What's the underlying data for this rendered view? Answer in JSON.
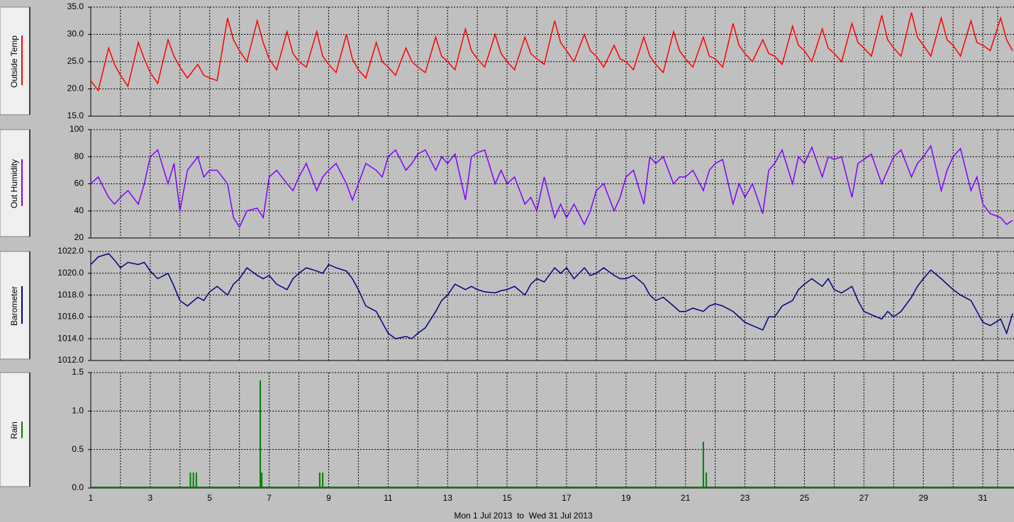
{
  "chart_data": [
    {
      "type": "line",
      "ylabel": "Outside Temp",
      "color": "#ff0000",
      "xlim": [
        1,
        32
      ],
      "xticks": [
        1,
        3,
        5,
        7,
        9,
        11,
        13,
        15,
        17,
        19,
        21,
        23,
        25,
        27,
        29,
        31
      ],
      "minor_grid": true,
      "ylim": [
        15,
        35
      ],
      "yticks": [
        {
          "value": 35,
          "label": "35.0"
        },
        {
          "value": 30,
          "label": "30.0"
        },
        {
          "value": 25,
          "label": "25.0"
        },
        {
          "value": 20,
          "label": "20.0"
        },
        {
          "value": 15,
          "label": "15.0"
        }
      ],
      "x": [
        1,
        1.25,
        1.6,
        1.8,
        2,
        2.25,
        2.6,
        2.8,
        3,
        3.25,
        3.6,
        3.8,
        4,
        4.25,
        4.6,
        4.8,
        5,
        5.25,
        5.6,
        5.8,
        6,
        6.25,
        6.6,
        6.8,
        7,
        7.25,
        7.6,
        7.8,
        8,
        8.25,
        8.6,
        8.8,
        9,
        9.25,
        9.6,
        9.8,
        10,
        10.25,
        10.6,
        10.8,
        11,
        11.25,
        11.6,
        11.8,
        12,
        12.25,
        12.6,
        12.8,
        13,
        13.25,
        13.6,
        13.8,
        14,
        14.25,
        14.6,
        14.8,
        15,
        15.25,
        15.6,
        15.8,
        16,
        16.25,
        16.6,
        16.8,
        17,
        17.25,
        17.6,
        17.8,
        18,
        18.25,
        18.6,
        18.8,
        19,
        19.25,
        19.6,
        19.8,
        20,
        20.25,
        20.6,
        20.8,
        21,
        21.25,
        21.6,
        21.8,
        22,
        22.25,
        22.6,
        22.8,
        23,
        23.25,
        23.6,
        23.8,
        24,
        24.25,
        24.6,
        24.8,
        25,
        25.25,
        25.6,
        25.8,
        26,
        26.25,
        26.6,
        26.8,
        27,
        27.25,
        27.6,
        27.8,
        28,
        28.25,
        28.6,
        28.8,
        29,
        29.25,
        29.6,
        29.8,
        30,
        30.25,
        30.6,
        30.8,
        31,
        31.25,
        31.6,
        31.8,
        32
      ],
      "values": [
        21.5,
        19.7,
        27.5,
        24.5,
        22.5,
        20.5,
        28.5,
        25.5,
        23,
        21,
        29,
        26,
        24,
        22,
        24.5,
        22.5,
        22,
        21.5,
        33,
        29,
        27,
        25,
        32.5,
        28.5,
        25.5,
        23.5,
        30.5,
        26.5,
        25,
        24,
        30.5,
        26,
        24.5,
        23,
        30,
        25.5,
        23.5,
        22,
        28.5,
        25,
        24,
        22.5,
        27.5,
        25,
        24,
        23,
        29.5,
        26,
        25,
        23.5,
        31,
        27,
        25.5,
        24,
        30,
        26.5,
        25,
        23.5,
        29.5,
        26.5,
        25.5,
        24.5,
        32.5,
        28.5,
        27,
        25,
        30,
        27,
        26,
        24,
        28,
        25.5,
        25,
        23.5,
        29.5,
        26,
        24.5,
        23,
        30.5,
        27,
        25.5,
        24,
        29.5,
        26,
        25.5,
        24,
        32,
        28,
        26.5,
        25,
        29,
        26.5,
        26,
        24.5,
        31.5,
        28,
        27,
        25,
        31,
        27.5,
        26.5,
        25,
        32,
        28.5,
        27.5,
        26,
        33.5,
        29,
        27.5,
        26,
        34,
        29.5,
        28,
        26,
        33,
        29,
        28,
        26,
        32.5,
        28.5,
        28,
        27,
        33,
        29,
        27
      ]
    },
    {
      "type": "line",
      "ylabel": "Out Humidity",
      "color": "#8000ff",
      "xlim": [
        1,
        32
      ],
      "xticks": [
        1,
        3,
        5,
        7,
        9,
        11,
        13,
        15,
        17,
        19,
        21,
        23,
        25,
        27,
        29,
        31
      ],
      "minor_grid": true,
      "ylim": [
        20,
        100
      ],
      "yticks": [
        100,
        80,
        60,
        40,
        20
      ],
      "x": [
        1,
        1.25,
        1.6,
        1.8,
        2,
        2.25,
        2.6,
        2.8,
        3,
        3.25,
        3.6,
        3.8,
        4,
        4.25,
        4.6,
        4.8,
        5,
        5.25,
        5.6,
        5.8,
        6,
        6.25,
        6.6,
        6.8,
        7,
        7.25,
        7.6,
        7.8,
        8,
        8.25,
        8.6,
        8.8,
        9,
        9.25,
        9.6,
        9.8,
        10,
        10.25,
        10.6,
        10.8,
        11,
        11.25,
        11.6,
        11.8,
        12,
        12.25,
        12.6,
        12.8,
        13,
        13.25,
        13.6,
        13.8,
        14,
        14.25,
        14.6,
        14.8,
        15,
        15.25,
        15.6,
        15.8,
        16,
        16.25,
        16.6,
        16.8,
        17,
        17.25,
        17.6,
        17.8,
        18,
        18.25,
        18.6,
        18.8,
        19,
        19.25,
        19.6,
        19.8,
        20,
        20.25,
        20.6,
        20.8,
        21,
        21.25,
        21.6,
        21.8,
        22,
        22.25,
        22.6,
        22.8,
        23,
        23.25,
        23.6,
        23.8,
        24,
        24.25,
        24.6,
        24.8,
        25,
        25.25,
        25.6,
        25.8,
        26,
        26.25,
        26.6,
        26.8,
        27,
        27.25,
        27.6,
        27.8,
        28,
        28.25,
        28.6,
        28.8,
        29,
        29.25,
        29.6,
        29.8,
        30,
        30.25,
        30.6,
        30.8,
        31,
        31.25,
        31.6,
        31.8,
        32
      ],
      "values": [
        60,
        65,
        50,
        45,
        50,
        55,
        45,
        60,
        80,
        85,
        60,
        75,
        40,
        70,
        80,
        65,
        70,
        70,
        60,
        35,
        28,
        40,
        42,
        35,
        65,
        70,
        60,
        55,
        65,
        75,
        55,
        65,
        70,
        75,
        60,
        48,
        60,
        75,
        70,
        65,
        80,
        85,
        70,
        75,
        82,
        85,
        70,
        80,
        75,
        82,
        48,
        80,
        83,
        85,
        60,
        70,
        60,
        65,
        45,
        50,
        40,
        65,
        35,
        45,
        35,
        45,
        30,
        40,
        55,
        60,
        40,
        50,
        65,
        70,
        45,
        80,
        75,
        80,
        60,
        65,
        65,
        70,
        55,
        70,
        75,
        78,
        45,
        60,
        50,
        60,
        38,
        70,
        75,
        85,
        60,
        80,
        75,
        87,
        65,
        80,
        78,
        80,
        50,
        75,
        78,
        82,
        60,
        70,
        80,
        85,
        65,
        75,
        80,
        88,
        55,
        70,
        80,
        86,
        55,
        65,
        45,
        38,
        35,
        30,
        33
      ]
    },
    {
      "type": "line",
      "ylabel": "Barometer",
      "color": "#000080",
      "xlim": [
        1,
        32
      ],
      "xticks": [
        1,
        3,
        5,
        7,
        9,
        11,
        13,
        15,
        17,
        19,
        21,
        23,
        25,
        27,
        29,
        31
      ],
      "minor_grid": true,
      "ylim": [
        1012,
        1022
      ],
      "yticks": [
        {
          "value": 1022,
          "label": "1022.0"
        },
        {
          "value": 1020,
          "label": "1020.0"
        },
        {
          "value": 1018,
          "label": "1018.0"
        },
        {
          "value": 1016,
          "label": "1016.0"
        },
        {
          "value": 1014,
          "label": "1014.0"
        },
        {
          "value": 1012,
          "label": "1012.0"
        }
      ],
      "x": [
        1,
        1.25,
        1.6,
        1.8,
        2,
        2.25,
        2.6,
        2.8,
        3,
        3.25,
        3.6,
        3.8,
        4,
        4.25,
        4.6,
        4.8,
        5,
        5.25,
        5.6,
        5.8,
        6,
        6.25,
        6.6,
        6.8,
        7,
        7.25,
        7.6,
        7.8,
        8,
        8.25,
        8.6,
        8.8,
        9,
        9.25,
        9.6,
        9.8,
        10,
        10.25,
        10.6,
        10.8,
        11,
        11.25,
        11.6,
        11.8,
        12,
        12.25,
        12.6,
        12.8,
        13,
        13.25,
        13.6,
        13.8,
        14,
        14.25,
        14.6,
        14.8,
        15,
        15.25,
        15.6,
        15.8,
        16,
        16.25,
        16.6,
        16.8,
        17,
        17.25,
        17.6,
        17.8,
        18,
        18.25,
        18.6,
        18.8,
        19,
        19.25,
        19.6,
        19.8,
        20,
        20.25,
        20.6,
        20.8,
        21,
        21.25,
        21.6,
        21.8,
        22,
        22.25,
        22.6,
        22.8,
        23,
        23.25,
        23.6,
        23.8,
        24,
        24.25,
        24.6,
        24.8,
        25,
        25.25,
        25.6,
        25.8,
        26,
        26.25,
        26.6,
        26.8,
        27,
        27.25,
        27.6,
        27.8,
        28,
        28.25,
        28.6,
        28.8,
        29,
        29.25,
        29.6,
        29.8,
        30,
        30.25,
        30.6,
        30.8,
        31,
        31.25,
        31.6,
        31.8,
        32
      ],
      "values": [
        1020.8,
        1021.5,
        1021.8,
        1021.2,
        1020.5,
        1021,
        1020.8,
        1021,
        1020.2,
        1019.5,
        1020,
        1018.8,
        1017.5,
        1017,
        1017.8,
        1017.5,
        1018.3,
        1018.8,
        1018,
        1019,
        1019.5,
        1020.5,
        1019.8,
        1019.5,
        1019.8,
        1019,
        1018.5,
        1019.5,
        1020,
        1020.5,
        1020.2,
        1020,
        1020.8,
        1020.5,
        1020.2,
        1019.5,
        1018.5,
        1017,
        1016.5,
        1015.5,
        1014.5,
        1014,
        1014.2,
        1014,
        1014.5,
        1015,
        1016.5,
        1017.5,
        1018,
        1019,
        1018.5,
        1018.8,
        1018.5,
        1018.3,
        1018.2,
        1018.4,
        1018.5,
        1018.8,
        1018,
        1019,
        1019.5,
        1019.2,
        1020.5,
        1020,
        1020.5,
        1019.5,
        1020.5,
        1019.8,
        1020,
        1020.5,
        1019.8,
        1019.5,
        1019.5,
        1019.8,
        1019,
        1018,
        1017.5,
        1017.8,
        1017,
        1016.5,
        1016.5,
        1016.8,
        1016.5,
        1017,
        1017.2,
        1017,
        1016.5,
        1016,
        1015.5,
        1015.2,
        1014.8,
        1016,
        1016,
        1017,
        1017.5,
        1018.5,
        1019,
        1019.5,
        1018.8,
        1019.5,
        1018.5,
        1018.2,
        1018.8,
        1017.5,
        1016.5,
        1016.2,
        1015.8,
        1016.5,
        1016,
        1016.5,
        1017.8,
        1018.8,
        1019.5,
        1020.3,
        1019.5,
        1019,
        1018.5,
        1018,
        1017.5,
        1016.5,
        1015.5,
        1015.2,
        1015.8,
        1014.5,
        1016.3
      ]
    },
    {
      "type": "bar",
      "ylabel": "Rain",
      "color": "#008000",
      "xlim": [
        1,
        32
      ],
      "xticks": [
        1,
        3,
        5,
        7,
        9,
        11,
        13,
        15,
        17,
        19,
        21,
        23,
        25,
        27,
        29,
        31
      ],
      "minor_grid": true,
      "ylim": [
        0,
        1.5
      ],
      "yticks": [
        1.5,
        {
          "value": 1,
          "label": "1.0"
        },
        0.5,
        {
          "value": 0,
          "label": "0.0"
        }
      ],
      "x": [
        4.35,
        4.45,
        4.55,
        6.7,
        6.75,
        8.7,
        8.8,
        21.6,
        21.7
      ],
      "values": [
        0.2,
        0.2,
        0.2,
        1.4,
        0.2,
        0.2,
        0.2,
        0.6,
        0.2
      ],
      "xlabel": "Mon 1 Jul 2013  to  Wed 31 Jul 2013"
    }
  ]
}
